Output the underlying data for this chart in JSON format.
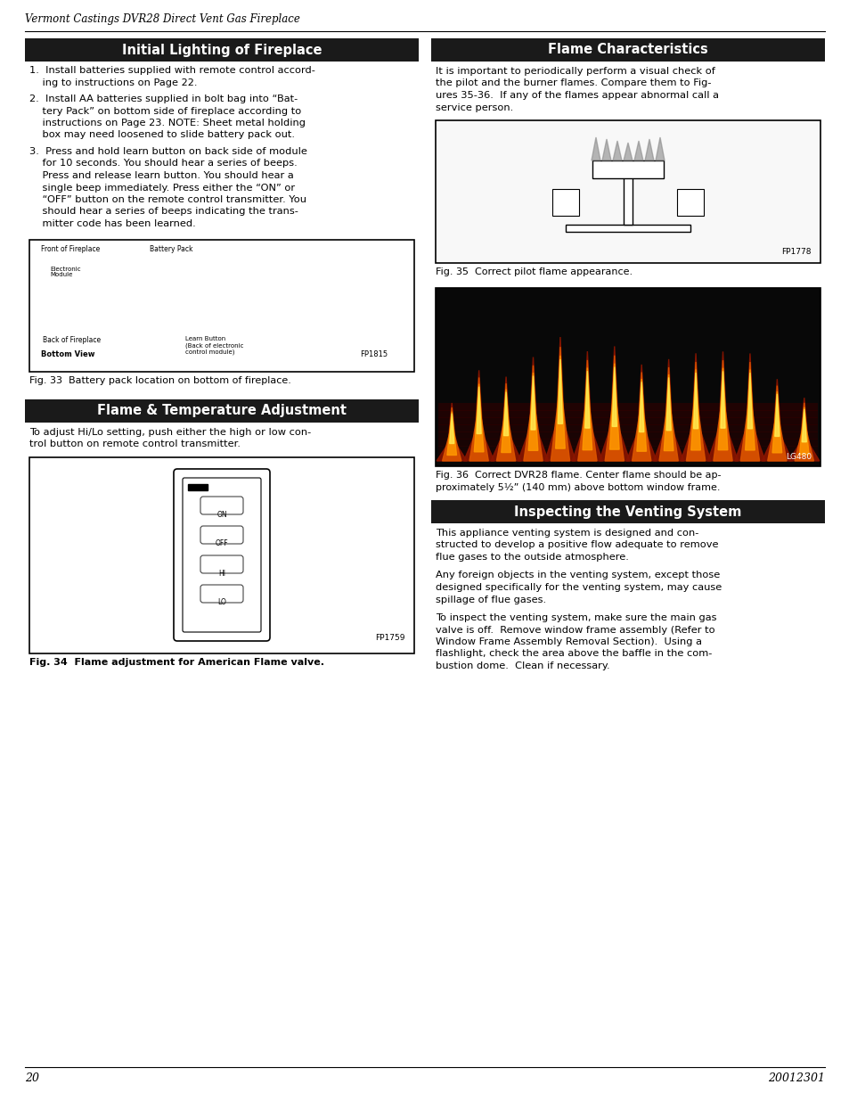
{
  "page_title": "Vermont Castings DVR28 Direct Vent Gas Fireplace",
  "page_num_left": "20",
  "page_num_right": "20012301",
  "bg_color": "#ffffff",
  "header_bg": "#1a1a1a",
  "header_text_color": "#ffffff",
  "section1_title": "Initial Lighting of Fireplace",
  "section1_items": [
    "1.  Install batteries supplied with remote control accord-\n    ing to instructions on Page 22.",
    "2.  Install AA batteries supplied in bolt bag into “Bat-\n    tery Pack” on bottom side of fireplace according to\n    instructions on Page 23. NOTE: Sheet metal holding\n    box may need loosened to slide battery pack out.",
    "3.  Press and hold learn button on back side of module\n    for 10 seconds. You should hear a series of beeps.\n    Press and release learn button. You should hear a\n    single beep immediately. Press either the “ON” or\n    “OFF” button on the remote control transmitter. You\n    should hear a series of beeps indicating the trans-\n    mitter code has been learned."
  ],
  "fig33_caption": "Fig. 33  Battery pack location on bottom of fireplace.",
  "section2_title": "Flame & Temperature Adjustment",
  "section2_body": "To adjust Hi/Lo setting, push either the high or low con-\ntrol button on remote control transmitter.",
  "fig34_caption": "Fig. 34  Flame adjustment for American Flame valve.",
  "section3_title": "Flame Characteristics",
  "section3_body": "It is important to periodically perform a visual check of\nthe pilot and the burner flames. Compare them to Fig-\nures 35-36.  If any of the flames appear abnormal call a\nservice person.",
  "fig35_caption": "Fig. 35  Correct pilot flame appearance.",
  "fig36_caption": "Fig. 36  Correct DVR28 flame. Center flame should be ap-\nproximately 5½” (140 mm) above bottom window frame.",
  "section4_title": "Inspecting the Venting System",
  "section4_paras": [
    "This appliance venting system is designed and con-\nstructed to develop a positive flow adequate to remove\nflue gases to the outside atmosphere.",
    "Any foreign objects in the venting system, except those\ndesigned specifically for the venting system, may cause\nspillage of flue gases.",
    "To inspect the venting system, make sure the main gas\nvalve is off.  Remove window frame assembly (Refer to\nWindow Frame Assembly Removal Section).  Using a\nflashlight, check the area above the baffle in the com-\nbustion dome.  Clean if necessary."
  ]
}
